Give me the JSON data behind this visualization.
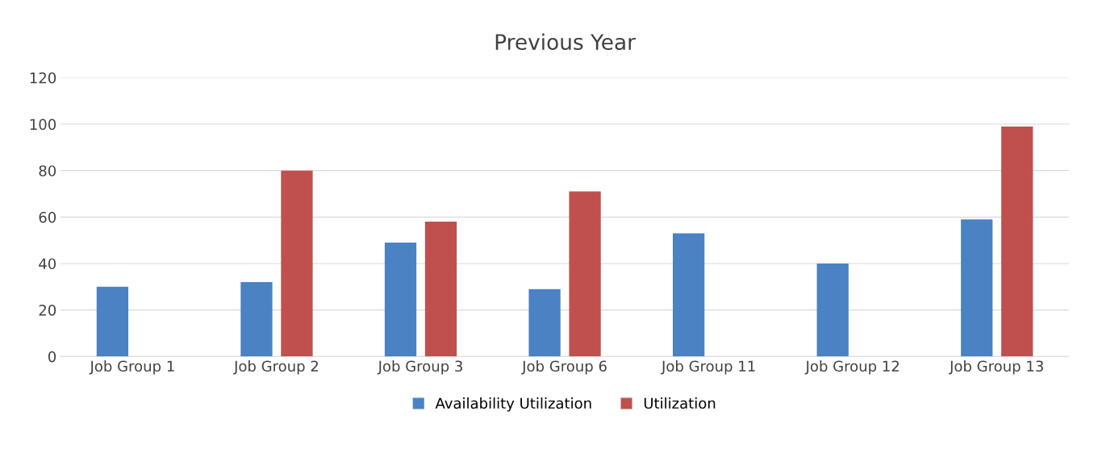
{
  "chart_data": {
    "type": "bar",
    "title": "Previous Year",
    "categories": [
      "Job Group 1",
      "Job Group 2",
      "Job Group 3",
      "Job Group 6",
      "Job Group 11",
      "Job Group 12",
      "Job Group 13"
    ],
    "series": [
      {
        "name": "Availability Utilization",
        "color": "#4a82c3",
        "values": [
          30,
          32,
          49,
          29,
          53,
          40,
          59
        ]
      },
      {
        "name": "Utilization",
        "color": "#c0504d",
        "values": [
          null,
          80,
          58,
          71,
          null,
          null,
          99
        ]
      }
    ],
    "ylim": [
      0,
      120
    ],
    "yticks": [
      0,
      20,
      40,
      60,
      80,
      100,
      120
    ],
    "grid": "y",
    "legend": "bottom"
  }
}
